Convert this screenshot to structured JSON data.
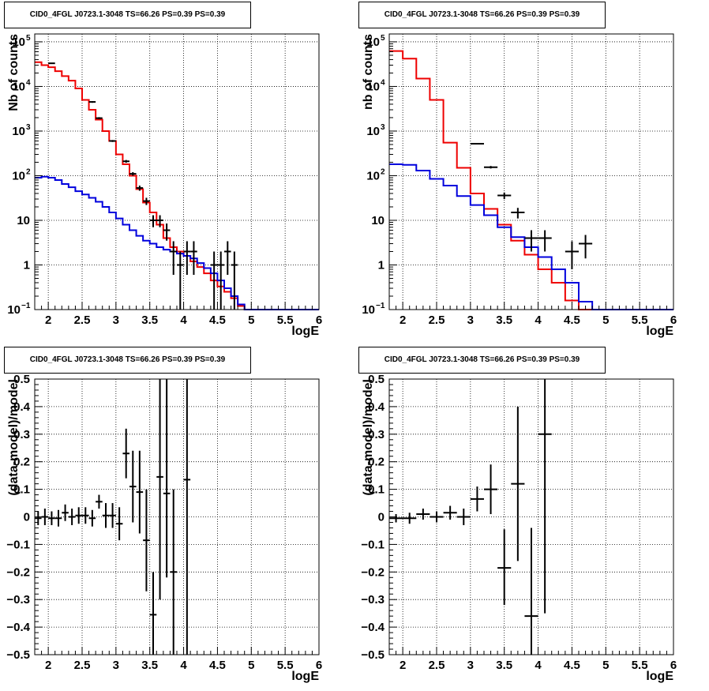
{
  "chart_data": [
    {
      "id": "counts-left",
      "type": "line",
      "title": "CID0_4FGL J0723.1-3048 TS=66.26 PS=0.39 PS=0.39",
      "xlabel": "logE",
      "ylabel": "Nb of counts",
      "xlim": [
        1.8,
        6.0
      ],
      "ylim": [
        0.1,
        150000
      ],
      "yscale": "log",
      "grid": true,
      "xticks": [
        {
          "v": 2,
          "label": "2"
        },
        {
          "v": 2.5,
          "label": "2.5"
        },
        {
          "v": 3,
          "label": "3"
        },
        {
          "v": 3.5,
          "label": "3.5"
        },
        {
          "v": 4,
          "label": "4"
        },
        {
          "v": 4.5,
          "label": "4.5"
        },
        {
          "v": 5,
          "label": "5"
        },
        {
          "v": 5.5,
          "label": "5.5"
        },
        {
          "v": 6,
          "label": "6"
        }
      ],
      "yticks": [
        {
          "v": 0.1,
          "label": "10",
          "sup": "−1"
        },
        {
          "v": 1,
          "label": "1",
          "sup": ""
        },
        {
          "v": 10,
          "label": "10",
          "sup": ""
        },
        {
          "v": 100,
          "label": "10",
          "sup": "2"
        },
        {
          "v": 1000,
          "label": "10",
          "sup": "3"
        },
        {
          "v": 10000,
          "label": "10",
          "sup": "4"
        },
        {
          "v": 100000,
          "label": "10",
          "sup": "5"
        }
      ],
      "series": [
        {
          "color": "#ee0000",
          "step": true,
          "edges": [
            1.8,
            1.9,
            2.0,
            2.1,
            2.2,
            2.3,
            2.4,
            2.5,
            2.6,
            2.7,
            2.8,
            2.9,
            3.0,
            3.1,
            3.2,
            3.3,
            3.4,
            3.5,
            3.6,
            3.7,
            3.8,
            3.9,
            4.0,
            4.1,
            4.2,
            4.3,
            4.4,
            4.5,
            4.6,
            4.7,
            4.8,
            4.9,
            5.0,
            5.1,
            5.2,
            5.3,
            5.4,
            5.5,
            5.6,
            5.7,
            5.8,
            5.9,
            6.0
          ],
          "values": [
            35000,
            30000,
            27000,
            22000,
            17000,
            13500,
            9000,
            5000,
            3000,
            1800,
            1000,
            600,
            300,
            180,
            100,
            50,
            25,
            15,
            8,
            4,
            2.5,
            2.0,
            1.6,
            1.2,
            0.9,
            0.65,
            0.45,
            0.33,
            0.25,
            0.18,
            0.12,
            0.1,
            0.1,
            0.1,
            0.1,
            0.1,
            0.1,
            0.1,
            0.1,
            0.1,
            0.1,
            0.1
          ]
        },
        {
          "color": "#0000dd",
          "step": true,
          "edges": [
            1.8,
            1.9,
            2.0,
            2.1,
            2.2,
            2.3,
            2.4,
            2.5,
            2.6,
            2.7,
            2.8,
            2.9,
            3.0,
            3.1,
            3.2,
            3.3,
            3.4,
            3.5,
            3.6,
            3.7,
            3.8,
            3.9,
            4.0,
            4.1,
            4.2,
            4.3,
            4.4,
            4.5,
            4.6,
            4.7,
            4.8,
            4.9,
            5.0,
            5.1,
            5.2,
            5.3,
            5.4,
            5.5,
            5.6,
            5.7,
            5.8,
            5.9,
            6.0
          ],
          "values": [
            90,
            95,
            90,
            80,
            65,
            55,
            45,
            38,
            32,
            26,
            20,
            15,
            11,
            8,
            6,
            4.5,
            3.5,
            3,
            2.5,
            2.2,
            2.0,
            1.8,
            1.6,
            1.4,
            1.1,
            0.85,
            0.65,
            0.45,
            0.3,
            0.2,
            0.13,
            0.1,
            0.1,
            0.1,
            0.1,
            0.1,
            0.1,
            0.1,
            0.1,
            0.1,
            0.1,
            0.1
          ]
        }
      ],
      "points": [
        {
          "x": 2.05,
          "xerr": 0.05,
          "y": 33000,
          "lo": 32500,
          "hi": 33500
        },
        {
          "x": 2.65,
          "xerr": 0.05,
          "y": 4500,
          "lo": 4300,
          "hi": 4700
        },
        {
          "x": 2.75,
          "xerr": 0.05,
          "y": 1950,
          "lo": 1850,
          "hi": 2050
        },
        {
          "x": 2.95,
          "xerr": 0.05,
          "y": 600,
          "lo": 570,
          "hi": 630
        },
        {
          "x": 3.15,
          "xerr": 0.05,
          "y": 210,
          "lo": 195,
          "hi": 225
        },
        {
          "x": 3.25,
          "xerr": 0.05,
          "y": 110,
          "lo": 100,
          "hi": 120
        },
        {
          "x": 3.35,
          "xerr": 0.05,
          "y": 53,
          "lo": 46,
          "hi": 60
        },
        {
          "x": 3.45,
          "xerr": 0.05,
          "y": 27,
          "lo": 22,
          "hi": 32
        },
        {
          "x": 3.55,
          "xerr": 0.05,
          "y": 10,
          "lo": 7,
          "hi": 13
        },
        {
          "x": 3.65,
          "xerr": 0.05,
          "y": 10,
          "lo": 7,
          "hi": 13
        },
        {
          "x": 3.75,
          "xerr": 0.05,
          "y": 6,
          "lo": 3.5,
          "hi": 8.5
        },
        {
          "x": 3.85,
          "xerr": 0.05,
          "y": 2,
          "lo": 0.6,
          "hi": 3.4
        },
        {
          "x": 3.95,
          "xerr": 0.05,
          "y": 1,
          "lo": 0.1,
          "hi": 2
        },
        {
          "x": 4.05,
          "xerr": 0.05,
          "y": 2,
          "lo": 0.6,
          "hi": 3.4
        },
        {
          "x": 4.15,
          "xerr": 0.05,
          "y": 2,
          "lo": 0.6,
          "hi": 3.4
        },
        {
          "x": 4.45,
          "xerr": 0.05,
          "y": 1,
          "lo": 0.1,
          "hi": 2
        },
        {
          "x": 4.55,
          "xerr": 0.05,
          "y": 1,
          "lo": 0.1,
          "hi": 2
        },
        {
          "x": 4.65,
          "xerr": 0.05,
          "y": 2,
          "lo": 0.6,
          "hi": 3.4
        },
        {
          "x": 4.75,
          "xerr": 0.05,
          "y": 1,
          "lo": 0.1,
          "hi": 2
        }
      ]
    },
    {
      "id": "counts-right",
      "type": "line",
      "title": "CID0_4FGL J0723.1-3048 TS=66.26 PS=0.39 PS=0.39",
      "xlabel": "logE",
      "ylabel": "nb of counts",
      "xlim": [
        1.8,
        6.0
      ],
      "ylim": [
        0.1,
        150000
      ],
      "yscale": "log",
      "grid": true,
      "xticks": [
        {
          "v": 2,
          "label": "2"
        },
        {
          "v": 2.5,
          "label": "2.5"
        },
        {
          "v": 3,
          "label": "3"
        },
        {
          "v": 3.5,
          "label": "3.5"
        },
        {
          "v": 4,
          "label": "4"
        },
        {
          "v": 4.5,
          "label": "4.5"
        },
        {
          "v": 5,
          "label": "5"
        },
        {
          "v": 5.5,
          "label": "5.5"
        },
        {
          "v": 6,
          "label": "6"
        }
      ],
      "yticks": [
        {
          "v": 0.1,
          "label": "10",
          "sup": "−1"
        },
        {
          "v": 1,
          "label": "1",
          "sup": ""
        },
        {
          "v": 10,
          "label": "10",
          "sup": ""
        },
        {
          "v": 100,
          "label": "10",
          "sup": "2"
        },
        {
          "v": 1000,
          "label": "10",
          "sup": "3"
        },
        {
          "v": 10000,
          "label": "10",
          "sup": "4"
        },
        {
          "v": 100000,
          "label": "10",
          "sup": "5"
        }
      ],
      "series": [
        {
          "color": "#ee0000",
          "step": true,
          "edges": [
            1.8,
            2.0,
            2.2,
            2.4,
            2.6,
            2.8,
            3.0,
            3.2,
            3.4,
            3.6,
            3.8,
            4.0,
            4.2,
            4.4,
            4.6,
            4.8,
            5.0,
            5.2,
            5.4,
            5.6,
            5.8,
            6.0
          ],
          "values": [
            62000,
            42000,
            15000,
            5000,
            550,
            150,
            40,
            18,
            8,
            3.5,
            1.7,
            0.8,
            0.4,
            0.16,
            0.1,
            0.1,
            0.1,
            0.1,
            0.1,
            0.1,
            0.1
          ],
          "edges_note": ""
        },
        {
          "color": "#0000dd",
          "step": true,
          "edges": [
            1.8,
            2.0,
            2.2,
            2.4,
            2.6,
            2.8,
            3.0,
            3.2,
            3.4,
            3.6,
            3.8,
            4.0,
            4.2,
            4.4,
            4.6,
            4.8,
            5.0,
            5.2,
            5.4,
            5.6,
            5.8,
            6.0
          ],
          "values": [
            180,
            175,
            130,
            85,
            60,
            35,
            22,
            13,
            7,
            4.2,
            2.5,
            1.5,
            0.8,
            0.4,
            0.15,
            0.1,
            0.1,
            0.1,
            0.1,
            0.1,
            0.1
          ]
        }
      ],
      "points": [
        {
          "x": 3.1,
          "xerr": 0.1,
          "y": 520,
          "lo": 500,
          "hi": 540
        },
        {
          "x": 3.3,
          "xerr": 0.1,
          "y": 155,
          "lo": 145,
          "hi": 165
        },
        {
          "x": 3.5,
          "xerr": 0.1,
          "y": 36,
          "lo": 30,
          "hi": 42
        },
        {
          "x": 3.7,
          "xerr": 0.1,
          "y": 15,
          "lo": 11,
          "hi": 19
        },
        {
          "x": 3.9,
          "xerr": 0.1,
          "y": 4,
          "lo": 2,
          "hi": 6
        },
        {
          "x": 4.1,
          "xerr": 0.1,
          "y": 4,
          "lo": 2,
          "hi": 6
        },
        {
          "x": 4.5,
          "xerr": 0.1,
          "y": 2,
          "lo": 0.8,
          "hi": 3.4
        },
        {
          "x": 4.7,
          "xerr": 0.1,
          "y": 3,
          "lo": 1.4,
          "hi": 4.7
        }
      ]
    },
    {
      "id": "residuals-left",
      "type": "scatter",
      "title": "CID0_4FGL J0723.1-3048 TS=66.26 PS=0.39 PS=0.39",
      "xlabel": "logE",
      "ylabel": "(data-model)/model",
      "xlim": [
        1.8,
        6.0
      ],
      "ylim": [
        -0.5,
        0.5
      ],
      "yscale": "linear",
      "grid": true,
      "xticks": [
        {
          "v": 2,
          "label": "2"
        },
        {
          "v": 2.5,
          "label": "2.5"
        },
        {
          "v": 3,
          "label": "3"
        },
        {
          "v": 3.5,
          "label": "3.5"
        },
        {
          "v": 4,
          "label": "4"
        },
        {
          "v": 4.5,
          "label": "4.5"
        },
        {
          "v": 5,
          "label": "5"
        },
        {
          "v": 5.5,
          "label": "5.5"
        },
        {
          "v": 6,
          "label": "6"
        }
      ],
      "yticks": [
        {
          "v": -0.5,
          "label": "−0.5",
          "sup": ""
        },
        {
          "v": -0.4,
          "label": "−0.4",
          "sup": ""
        },
        {
          "v": -0.3,
          "label": "−0.3",
          "sup": ""
        },
        {
          "v": -0.2,
          "label": "−0.2",
          "sup": ""
        },
        {
          "v": -0.1,
          "label": "−0.1",
          "sup": ""
        },
        {
          "v": 0,
          "label": "0",
          "sup": ""
        },
        {
          "v": 0.1,
          "label": "0.1",
          "sup": ""
        },
        {
          "v": 0.2,
          "label": "0.2",
          "sup": ""
        },
        {
          "v": 0.3,
          "label": "0.3",
          "sup": ""
        },
        {
          "v": 0.4,
          "label": "0.4",
          "sup": ""
        },
        {
          "v": 0.5,
          "label": "0.5",
          "sup": ""
        }
      ],
      "series": [],
      "points": [
        {
          "x": 1.85,
          "xerr": 0.05,
          "y": -0.005,
          "lo": -0.03,
          "hi": 0.02
        },
        {
          "x": 1.95,
          "xerr": 0.05,
          "y": 0.0,
          "lo": -0.03,
          "hi": 0.03
        },
        {
          "x": 2.05,
          "xerr": 0.05,
          "y": -0.005,
          "lo": -0.03,
          "hi": 0.02
        },
        {
          "x": 2.15,
          "xerr": 0.05,
          "y": -0.005,
          "lo": -0.035,
          "hi": 0.025
        },
        {
          "x": 2.25,
          "xerr": 0.05,
          "y": 0.015,
          "lo": -0.015,
          "hi": 0.045
        },
        {
          "x": 2.35,
          "xerr": 0.05,
          "y": 0.0,
          "lo": -0.03,
          "hi": 0.03
        },
        {
          "x": 2.45,
          "xerr": 0.05,
          "y": 0.005,
          "lo": -0.025,
          "hi": 0.035
        },
        {
          "x": 2.55,
          "xerr": 0.05,
          "y": 0.005,
          "lo": -0.025,
          "hi": 0.035
        },
        {
          "x": 2.65,
          "xerr": 0.05,
          "y": -0.005,
          "lo": -0.035,
          "hi": 0.025
        },
        {
          "x": 2.75,
          "xerr": 0.05,
          "y": 0.055,
          "lo": 0.03,
          "hi": 0.08
        },
        {
          "x": 2.85,
          "xerr": 0.05,
          "y": 0.005,
          "lo": -0.04,
          "hi": 0.05
        },
        {
          "x": 2.95,
          "xerr": 0.05,
          "y": 0.005,
          "lo": -0.04,
          "hi": 0.05
        },
        {
          "x": 3.05,
          "xerr": 0.05,
          "y": -0.025,
          "lo": -0.085,
          "hi": 0.035
        },
        {
          "x": 3.15,
          "xerr": 0.05,
          "y": 0.23,
          "lo": 0.14,
          "hi": 0.32
        },
        {
          "x": 3.25,
          "xerr": 0.05,
          "y": 0.11,
          "lo": -0.02,
          "hi": 0.24
        },
        {
          "x": 3.35,
          "xerr": 0.05,
          "y": 0.09,
          "lo": -0.06,
          "hi": 0.24
        },
        {
          "x": 3.45,
          "xerr": 0.05,
          "y": -0.085,
          "lo": -0.27,
          "hi": 0.1
        },
        {
          "x": 3.55,
          "xerr": 0.05,
          "y": -0.355,
          "lo": -0.5,
          "hi": -0.2
        },
        {
          "x": 3.65,
          "xerr": 0.05,
          "y": 0.145,
          "lo": -0.3,
          "hi": 0.5
        },
        {
          "x": 3.75,
          "xerr": 0.05,
          "y": 0.085,
          "lo": -0.22,
          "hi": 0.5
        },
        {
          "x": 3.85,
          "xerr": 0.05,
          "y": -0.2,
          "lo": -0.5,
          "hi": 0.1
        },
        {
          "x": 4.05,
          "xerr": 0.05,
          "y": 0.135,
          "lo": -0.5,
          "hi": 0.5
        }
      ]
    },
    {
      "id": "residuals-right",
      "type": "scatter",
      "title": "CID0_4FGL J0723.1-3048 TS=66.26 PS=0.39 PS=0.39",
      "xlabel": "logE",
      "ylabel": "(data-model)/model",
      "xlim": [
        1.8,
        6.0
      ],
      "ylim": [
        -0.5,
        0.5
      ],
      "yscale": "linear",
      "grid": true,
      "xticks": [
        {
          "v": 2,
          "label": "2"
        },
        {
          "v": 2.5,
          "label": "2.5"
        },
        {
          "v": 3,
          "label": "3"
        },
        {
          "v": 3.5,
          "label": "3.5"
        },
        {
          "v": 4,
          "label": "4"
        },
        {
          "v": 4.5,
          "label": "4.5"
        },
        {
          "v": 5,
          "label": "5"
        },
        {
          "v": 5.5,
          "label": "5.5"
        },
        {
          "v": 6,
          "label": "6"
        }
      ],
      "yticks": [
        {
          "v": -0.5,
          "label": "−0.5",
          "sup": ""
        },
        {
          "v": -0.4,
          "label": "−0.4",
          "sup": ""
        },
        {
          "v": -0.3,
          "label": "−0.3",
          "sup": ""
        },
        {
          "v": -0.2,
          "label": "−0.2",
          "sup": ""
        },
        {
          "v": -0.1,
          "label": "−0.1",
          "sup": ""
        },
        {
          "v": 0,
          "label": "0",
          "sup": ""
        },
        {
          "v": 0.1,
          "label": "0.1",
          "sup": ""
        },
        {
          "v": 0.2,
          "label": "0.2",
          "sup": ""
        },
        {
          "v": 0.3,
          "label": "0.3",
          "sup": ""
        },
        {
          "v": 0.4,
          "label": "0.4",
          "sup": ""
        },
        {
          "v": 0.5,
          "label": "0.5",
          "sup": ""
        }
      ],
      "series": [],
      "points": [
        {
          "x": 1.9,
          "xerr": 0.1,
          "y": -0.005,
          "lo": -0.02,
          "hi": 0.01
        },
        {
          "x": 2.1,
          "xerr": 0.1,
          "y": -0.005,
          "lo": -0.025,
          "hi": 0.015
        },
        {
          "x": 2.3,
          "xerr": 0.1,
          "y": 0.01,
          "lo": -0.01,
          "hi": 0.03
        },
        {
          "x": 2.5,
          "xerr": 0.1,
          "y": 0.0,
          "lo": -0.02,
          "hi": 0.02
        },
        {
          "x": 2.7,
          "xerr": 0.1,
          "y": 0.015,
          "lo": -0.01,
          "hi": 0.04
        },
        {
          "x": 2.9,
          "xerr": 0.1,
          "y": 0.0,
          "lo": -0.03,
          "hi": 0.03
        },
        {
          "x": 3.1,
          "xerr": 0.1,
          "y": 0.065,
          "lo": 0.02,
          "hi": 0.11
        },
        {
          "x": 3.3,
          "xerr": 0.1,
          "y": 0.1,
          "lo": 0.01,
          "hi": 0.19
        },
        {
          "x": 3.5,
          "xerr": 0.1,
          "y": -0.185,
          "lo": -0.32,
          "hi": -0.045
        },
        {
          "x": 3.7,
          "xerr": 0.1,
          "y": 0.12,
          "lo": -0.16,
          "hi": 0.4
        },
        {
          "x": 3.9,
          "xerr": 0.1,
          "y": -0.36,
          "lo": -0.5,
          "hi": -0.04
        },
        {
          "x": 4.1,
          "xerr": 0.1,
          "y": 0.3,
          "lo": -0.35,
          "hi": 0.5
        }
      ]
    }
  ]
}
